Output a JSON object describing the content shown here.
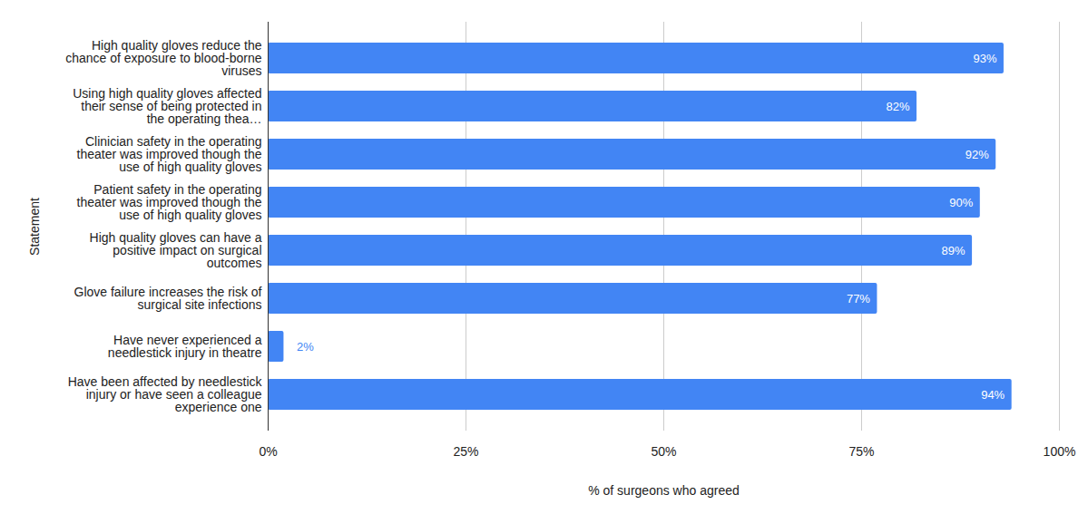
{
  "chart_data": {
    "type": "bar",
    "orientation": "horizontal",
    "x_label": "% of surgeons who agreed",
    "y_label": "Statement",
    "categories": [
      "High quality gloves reduce the chance of exposure to blood-borne viruses",
      "Using high quality gloves affected their sense of being protected in the operating thea…",
      "Clinician safety in the operating theater was improved though the use of high quality gloves",
      "Patient safety in the operating theater was improved though the use of high quality gloves",
      "High quality gloves can have a positive impact on surgical outcomes",
      "Glove failure increases the risk of surgical site infections",
      "Have never experienced a needlestick injury in theatre",
      "Have been affected by needlestick injury or have seen a colleague experience one"
    ],
    "values": [
      93,
      82,
      92,
      90,
      89,
      77,
      2,
      94
    ],
    "value_labels": [
      "93%",
      "82%",
      "92%",
      "90%",
      "89%",
      "77%",
      "2%",
      "94%"
    ],
    "color": "#4285f4",
    "xlim": [
      0,
      100
    ],
    "xticks": [
      {
        "value": 0,
        "label": "0%"
      },
      {
        "value": 25,
        "label": "25%"
      },
      {
        "value": 50,
        "label": "50%"
      },
      {
        "value": 75,
        "label": "75%"
      },
      {
        "value": 100,
        "label": "100%"
      }
    ],
    "grid": true,
    "data_labels": true
  }
}
